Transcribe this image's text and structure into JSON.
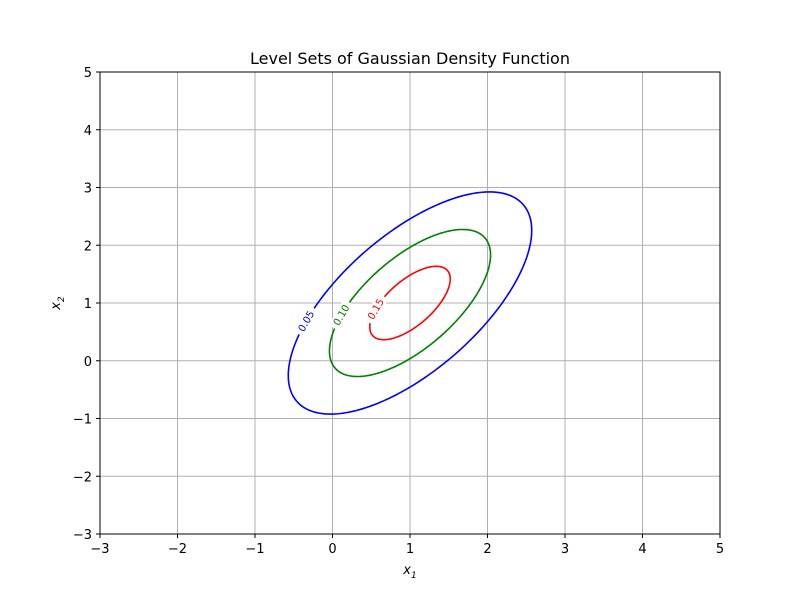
{
  "chart_data": {
    "type": "contour",
    "title": "Level Sets of Gaussian Density Function",
    "xlabel": {
      "base": "x",
      "sub": "1"
    },
    "ylabel": {
      "base": "x",
      "sub": "2"
    },
    "xlim": [
      -3,
      5
    ],
    "ylim": [
      -3,
      5
    ],
    "xticks": [
      "−3",
      "−2",
      "−1",
      "0",
      "1",
      "2",
      "3",
      "4",
      "5"
    ],
    "yticks": [
      "−3",
      "−2",
      "−1",
      "0",
      "1",
      "2",
      "3",
      "4",
      "5"
    ],
    "xtick_values": [
      -3,
      -2,
      -1,
      0,
      1,
      2,
      3,
      4,
      5
    ],
    "ytick_values": [
      -3,
      -2,
      -1,
      0,
      1,
      2,
      3,
      4,
      5
    ],
    "grid": true,
    "distribution": {
      "mean": [
        1,
        1
      ],
      "covariance": [
        [
          1,
          0.8
        ],
        [
          0.8,
          1.5
        ]
      ]
    },
    "levels": [
      {
        "value": 0.05,
        "label": "0.05",
        "color": "#0000ff"
      },
      {
        "value": 0.1,
        "label": "0.10",
        "color": "#008000"
      },
      {
        "value": 0.15,
        "label": "0.15",
        "color": "#ff0000"
      }
    ]
  }
}
